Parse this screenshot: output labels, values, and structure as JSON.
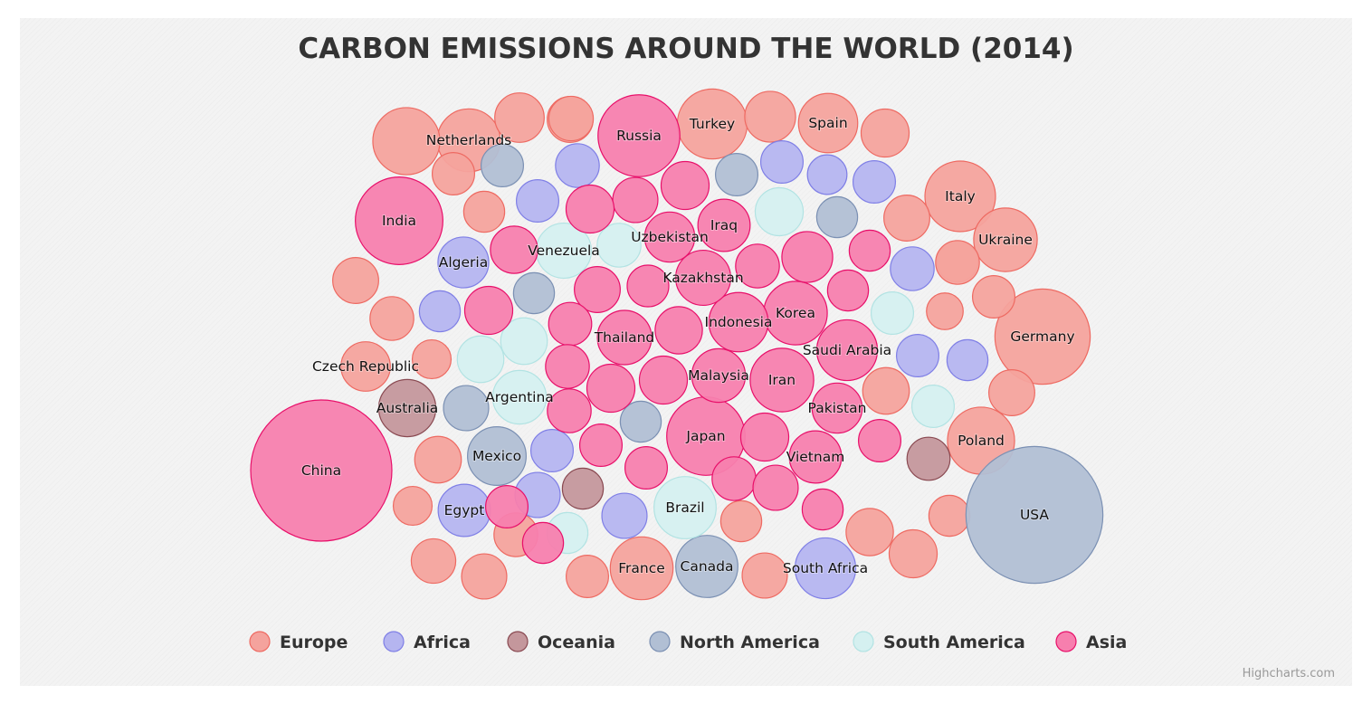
{
  "chart_data": {
    "type": "packed-bubble",
    "title": "CARBON EMISSIONS AROUND THE WORLD (2014)",
    "credits": "Highcharts.com",
    "legend_position": "bottom-center",
    "series": [
      {
        "name": "Europe",
        "color": "#f4a39d",
        "stroke": "#ee6a62",
        "points": [
          {
            "label": "Netherlands",
            "value": 0.89
          },
          {
            "label": "Turkey",
            "value": 0.99
          },
          {
            "label": "Spain",
            "value": 0.84
          },
          {
            "label": "Italy",
            "value": 1.0
          },
          {
            "label": "Ukraine",
            "value": 0.9
          },
          {
            "label": "Germany",
            "value": 1.35
          },
          {
            "label": "Czech Republic",
            "value": 0.7
          },
          {
            "label": "Poland",
            "value": 0.95
          },
          {
            "label": "France",
            "value": 0.89
          },
          {
            "label": "",
            "value": 0.95
          },
          {
            "label": "",
            "value": 0.7
          },
          {
            "label": "",
            "value": 0.65
          },
          {
            "label": "",
            "value": 0.72
          },
          {
            "label": "",
            "value": 0.68
          },
          {
            "label": "",
            "value": 0.6
          },
          {
            "label": "",
            "value": 0.58
          },
          {
            "label": "",
            "value": 0.65
          },
          {
            "label": "",
            "value": 0.58
          },
          {
            "label": "",
            "value": 0.65
          },
          {
            "label": "",
            "value": 0.6
          },
          {
            "label": "",
            "value": 0.62
          },
          {
            "label": "",
            "value": 0.52
          },
          {
            "label": "",
            "value": 0.55
          },
          {
            "label": "",
            "value": 0.65
          },
          {
            "label": "",
            "value": 0.66
          },
          {
            "label": "",
            "value": 0.66
          },
          {
            "label": "",
            "value": 0.55
          },
          {
            "label": "",
            "value": 0.62
          },
          {
            "label": "",
            "value": 0.58
          },
          {
            "label": "",
            "value": 0.58
          },
          {
            "label": "",
            "value": 0.67
          },
          {
            "label": "",
            "value": 0.63
          },
          {
            "label": "",
            "value": 0.64
          },
          {
            "label": "",
            "value": 0.6
          },
          {
            "label": "",
            "value": 0.64
          },
          {
            "label": "",
            "value": 0.68
          },
          {
            "label": "",
            "value": 0.63
          },
          {
            "label": "",
            "value": 0.62
          }
        ]
      },
      {
        "name": "Africa",
        "color": "#b5b5f0",
        "stroke": "#7f7fe6",
        "points": [
          {
            "label": "Algeria",
            "value": 0.72
          },
          {
            "label": "Egypt",
            "value": 0.74
          },
          {
            "label": "South Africa",
            "value": 0.86
          },
          {
            "label": "",
            "value": 0.62
          },
          {
            "label": "",
            "value": 0.6
          },
          {
            "label": "",
            "value": 0.6
          },
          {
            "label": "",
            "value": 0.56
          },
          {
            "label": "",
            "value": 0.6
          },
          {
            "label": "",
            "value": 0.62
          },
          {
            "label": "",
            "value": 0.58
          },
          {
            "label": "",
            "value": 0.6
          },
          {
            "label": "",
            "value": 0.58
          },
          {
            "label": "",
            "value": 0.6
          },
          {
            "label": "",
            "value": 0.64
          },
          {
            "label": "",
            "value": 0.64
          }
        ]
      },
      {
        "name": "Oceania",
        "color": "#c4979c",
        "stroke": "#8a4a52",
        "points": [
          {
            "label": "Australia",
            "value": 0.81
          },
          {
            "label": "",
            "value": 0.58
          },
          {
            "label": "",
            "value": 0.61
          }
        ]
      },
      {
        "name": "North America",
        "color": "#b1bfd4",
        "stroke": "#7b90b3",
        "points": [
          {
            "label": "USA",
            "value": 1.94
          },
          {
            "label": "Mexico",
            "value": 0.83
          },
          {
            "label": "Canada",
            "value": 0.88
          },
          {
            "label": "",
            "value": 0.6
          },
          {
            "label": "",
            "value": 0.6
          },
          {
            "label": "",
            "value": 0.58
          },
          {
            "label": "",
            "value": 0.58
          },
          {
            "label": "",
            "value": 0.64
          },
          {
            "label": "",
            "value": 0.58
          }
        ]
      },
      {
        "name": "South America",
        "color": "#d5f0f0",
        "stroke": "#b2e3e3",
        "points": [
          {
            "label": "Venezuela",
            "value": 0.78
          },
          {
            "label": "Argentina",
            "value": 0.76
          },
          {
            "label": "Brazil",
            "value": 0.88
          },
          {
            "label": "",
            "value": 0.68
          },
          {
            "label": "",
            "value": 0.62
          },
          {
            "label": "",
            "value": 0.6
          },
          {
            "label": "",
            "value": 0.66
          },
          {
            "label": "",
            "value": 0.66
          },
          {
            "label": "",
            "value": 0.6
          },
          {
            "label": "",
            "value": 0.58
          }
        ]
      },
      {
        "name": "Asia",
        "color": "#f77fae",
        "stroke": "#e8106a",
        "points": [
          {
            "label": "China",
            "value": 2.0
          },
          {
            "label": "India",
            "value": 1.24
          },
          {
            "label": "Russia",
            "value": 1.16
          },
          {
            "label": "Japan",
            "value": 1.11
          },
          {
            "label": "Iran",
            "value": 0.9
          },
          {
            "label": "Korea",
            "value": 0.9
          },
          {
            "label": "Saudi Arabia",
            "value": 0.86
          },
          {
            "label": "Indonesia",
            "value": 0.84
          },
          {
            "label": "Kazakhstan",
            "value": 0.78
          },
          {
            "label": "Thailand",
            "value": 0.77
          },
          {
            "label": "Malaysia",
            "value": 0.76
          },
          {
            "label": "Uzbekistan",
            "value": 0.71
          },
          {
            "label": "Pakistan",
            "value": 0.71
          },
          {
            "label": "Vietnam",
            "value": 0.74
          },
          {
            "label": "Iraq",
            "value": 0.74
          },
          {
            "label": "",
            "value": 0.68
          },
          {
            "label": "",
            "value": 0.64
          },
          {
            "label": "",
            "value": 0.68
          },
          {
            "label": "",
            "value": 0.67
          },
          {
            "label": "",
            "value": 0.65
          },
          {
            "label": "",
            "value": 0.59
          },
          {
            "label": "",
            "value": 0.62
          },
          {
            "label": "",
            "value": 0.72
          },
          {
            "label": "",
            "value": 0.58
          },
          {
            "label": "",
            "value": 0.68
          },
          {
            "label": "",
            "value": 0.61
          },
          {
            "label": "",
            "value": 0.67
          },
          {
            "label": "",
            "value": 0.58
          },
          {
            "label": "",
            "value": 0.62
          },
          {
            "label": "",
            "value": 0.68
          },
          {
            "label": "",
            "value": 0.68
          },
          {
            "label": "",
            "value": 0.62
          },
          {
            "label": "",
            "value": 0.6
          },
          {
            "label": "",
            "value": 0.6
          },
          {
            "label": "",
            "value": 0.62
          },
          {
            "label": "",
            "value": 0.68
          },
          {
            "label": "",
            "value": 0.64
          },
          {
            "label": "",
            "value": 0.58
          },
          {
            "label": "",
            "value": 0.6
          },
          {
            "label": "",
            "value": 0.58
          },
          {
            "label": "",
            "value": 0.6
          }
        ]
      }
    ]
  }
}
